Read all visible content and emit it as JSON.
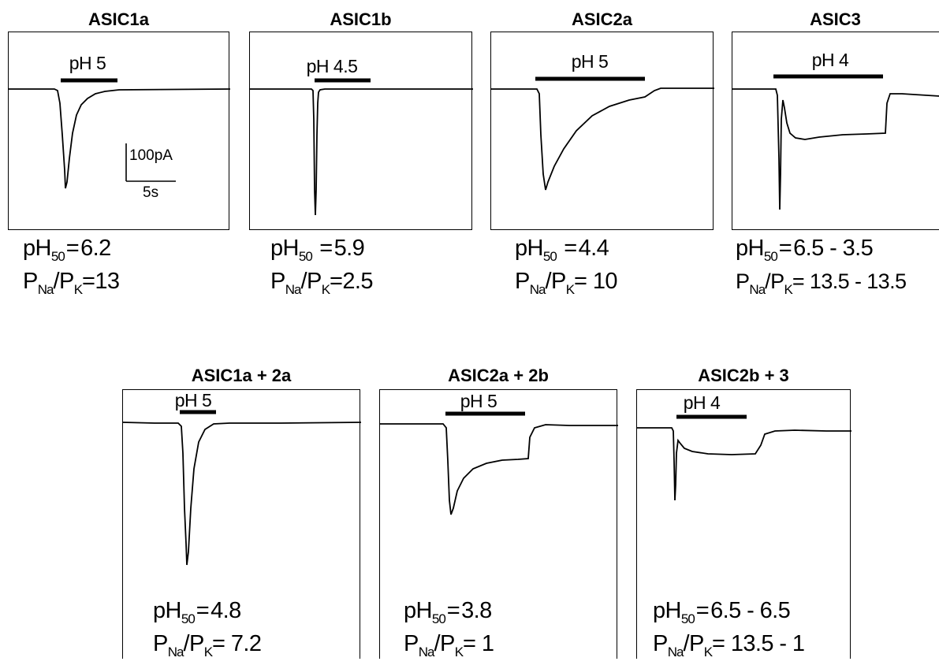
{
  "panels": [
    {
      "id": "asic1a",
      "title": "ASIC1a",
      "ph_label": "pH 5",
      "ph50": "6.2",
      "pna_pk": "13"
    },
    {
      "id": "asic1b",
      "title": "ASIC1b",
      "ph_label": "pH 4.5",
      "ph50": "5.9",
      "pna_pk": "2.5"
    },
    {
      "id": "asic2a",
      "title": "ASIC2a",
      "ph_label": "pH 5",
      "ph50": "4.4",
      "pna_pk": "10"
    },
    {
      "id": "asic3",
      "title": "ASIC3",
      "ph_label": "pH 4",
      "ph50": "6.5 - 3.5",
      "pna_pk": "13.5 - 13.5"
    },
    {
      "id": "asic1a-2a",
      "title": "ASIC1a + 2a",
      "ph_label": "pH 5",
      "ph50": "4.8",
      "pna_pk": "7.2"
    },
    {
      "id": "asic2a-2b",
      "title": "ASIC2a + 2b",
      "ph_label": "pH 5",
      "ph50": "3.8",
      "pna_pk": "1"
    },
    {
      "id": "asic2b-3",
      "title": "ASIC2b + 3",
      "ph_label": "pH 4",
      "ph50": "6.5 - 6.5",
      "pna_pk": "13.5 - 1"
    }
  ],
  "symbols": {
    "ph50_base": "pH",
    "ph50_sub": "50",
    "pna_base": "P",
    "pna_sub": "Na",
    "pk_base": "P",
    "pk_sub": "K",
    "slash": "/",
    "equals": "="
  },
  "scale_bar": {
    "current_label": "100pA",
    "time_label": "5s"
  },
  "colors": {
    "trace": "#000000",
    "background": "#ffffff"
  }
}
